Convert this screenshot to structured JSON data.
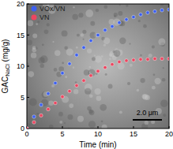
{
  "chart_data": {
    "type": "scatter",
    "x_label": "Time (min)",
    "y_label": "GAC",
    "y_label_sub": "NaCl",
    "y_label_unit": " (mg/g)",
    "annotations": [
      "2.0 μm"
    ],
    "x": [
      0,
      1,
      2,
      3,
      4,
      5,
      6,
      7,
      8,
      9,
      10,
      11,
      12,
      13,
      14,
      15,
      16,
      17,
      18,
      19,
      20
    ],
    "series": [
      {
        "name": "VOx/VN",
        "color": "#3c5ff0",
        "marker": "circle",
        "values": [
          0,
          1.9,
          3.8,
          5.6,
          7.3,
          8.9,
          10.4,
          11.8,
          13.0,
          14.1,
          15.0,
          15.8,
          16.4,
          17.0,
          17.5,
          17.9,
          18.3,
          18.6,
          18.8,
          19.0,
          19.1
        ]
      },
      {
        "name": "VN",
        "color": "#ec4660",
        "marker": "circle",
        "values": [
          0,
          1.0,
          2.1,
          3.1,
          4.1,
          5.1,
          6.0,
          6.9,
          7.7,
          8.5,
          9.2,
          9.8,
          10.3,
          10.7,
          10.9,
          11.0,
          11.1,
          11.1,
          11.2,
          11.2,
          11.2
        ]
      }
    ],
    "xlim": [
      0,
      20
    ],
    "ylim": [
      0,
      20
    ],
    "xticks": [
      0,
      5,
      10,
      15,
      20
    ],
    "yticks": [
      0,
      5,
      10,
      15,
      20
    ],
    "legend": "upper left"
  }
}
